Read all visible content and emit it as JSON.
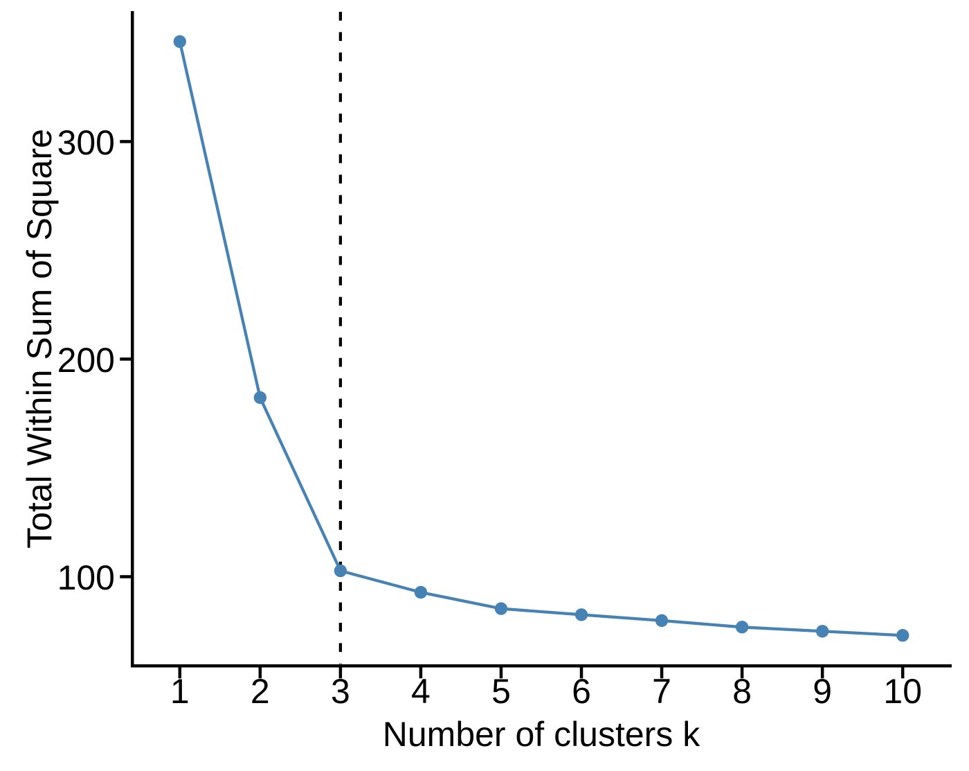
{
  "chart_data": {
    "type": "line",
    "title": "",
    "xlabel": "Number of clusters k",
    "ylabel": "Total Within Sum of Square",
    "x": [
      1,
      2,
      3,
      4,
      5,
      6,
      7,
      8,
      9,
      10
    ],
    "y": [
      346.0,
      182.3,
      102.7,
      92.8,
      85.3,
      82.5,
      79.8,
      76.8,
      74.9,
      73.0
    ],
    "x_ticks": [
      "1",
      "2",
      "3",
      "4",
      "5",
      "6",
      "7",
      "8",
      "9",
      "10"
    ],
    "x_tick_values": [
      1,
      2,
      3,
      4,
      5,
      6,
      7,
      8,
      9,
      10
    ],
    "y_ticks": [
      "100",
      "200",
      "300"
    ],
    "y_tick_values": [
      100,
      200,
      300
    ],
    "x_domain": [
      0.39,
      10.61
    ],
    "y_domain": [
      59.7,
      360
    ],
    "vline": {
      "x": 3,
      "style": "dashed",
      "color": "#000000"
    },
    "line_color": "#4682B4",
    "point_color": "#4682B4",
    "axis_color": "#000000",
    "text_color": "#000000",
    "background": "#FFFFFF",
    "grid": false,
    "legend": "none"
  }
}
